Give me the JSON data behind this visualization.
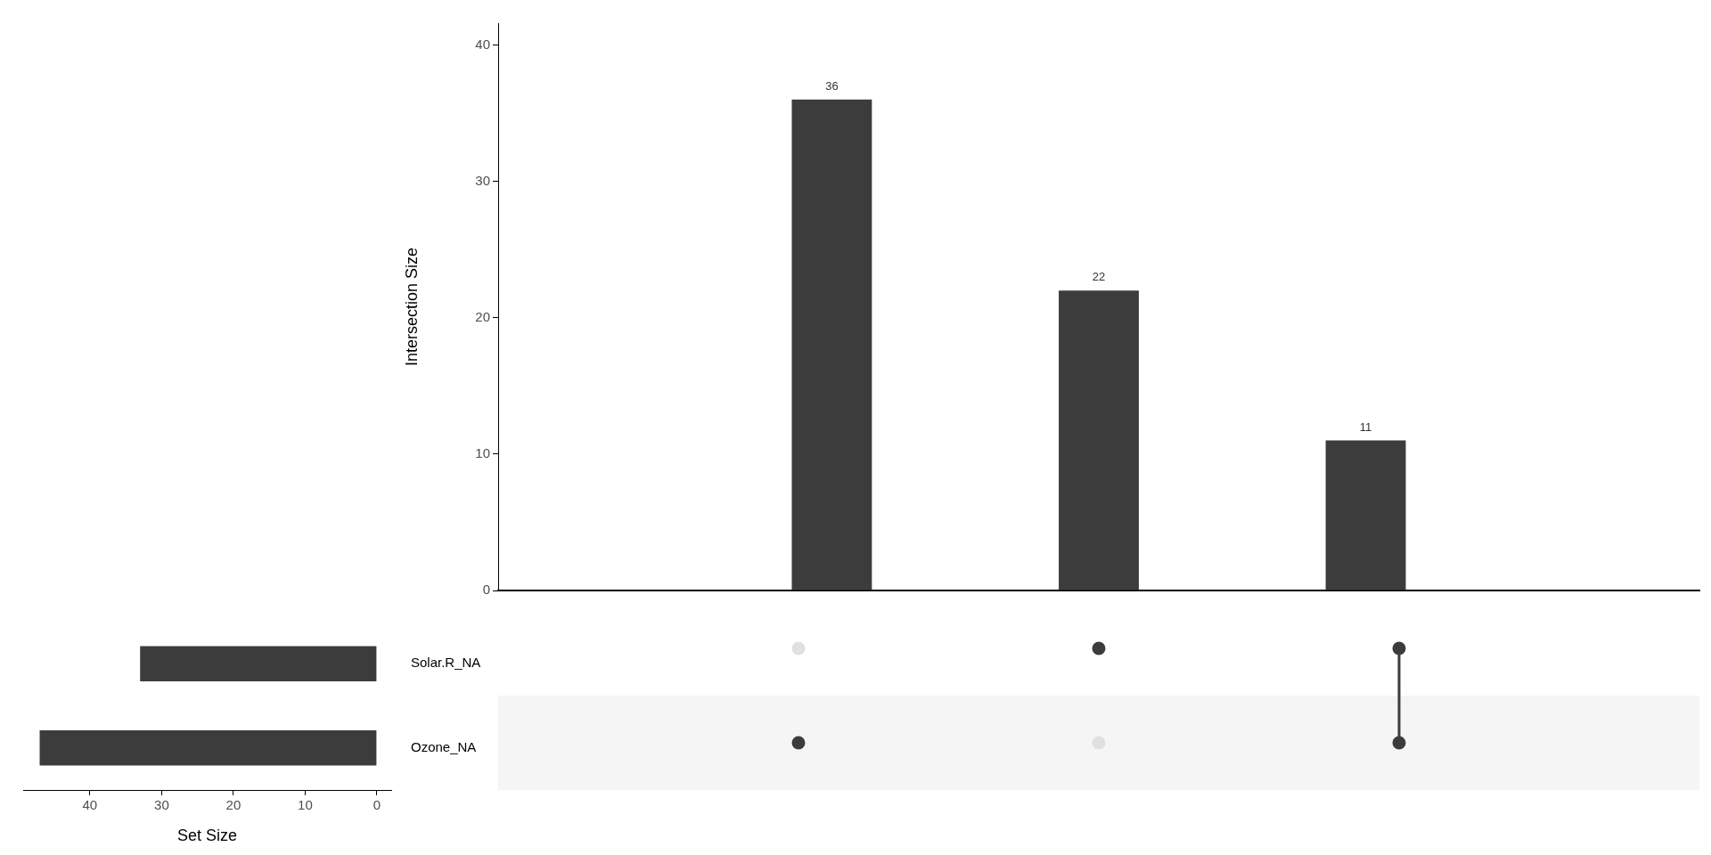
{
  "chart_data": [
    {
      "type": "bar",
      "categories": [
        null,
        null,
        null
      ],
      "values": [
        36,
        22,
        11
      ],
      "color": "#3c3c3c",
      "ylim": [
        0,
        41.6
      ],
      "yticks": [
        0,
        10,
        20,
        30,
        40
      ],
      "ylabel": "Intersection Size",
      "data_labels": true,
      "tick_labels": "y"
    },
    {
      "type": "bar",
      "orientation": "horizontal",
      "categories": [
        "Solar.R_NA",
        "Ozone_NA"
      ],
      "values": [
        33,
        47
      ],
      "color": "#3c3c3c",
      "xlim": [
        49.3,
        -2
      ],
      "xticks": [
        40,
        30,
        20,
        10,
        0
      ],
      "xlabel": "Set Size"
    }
  ]
}
